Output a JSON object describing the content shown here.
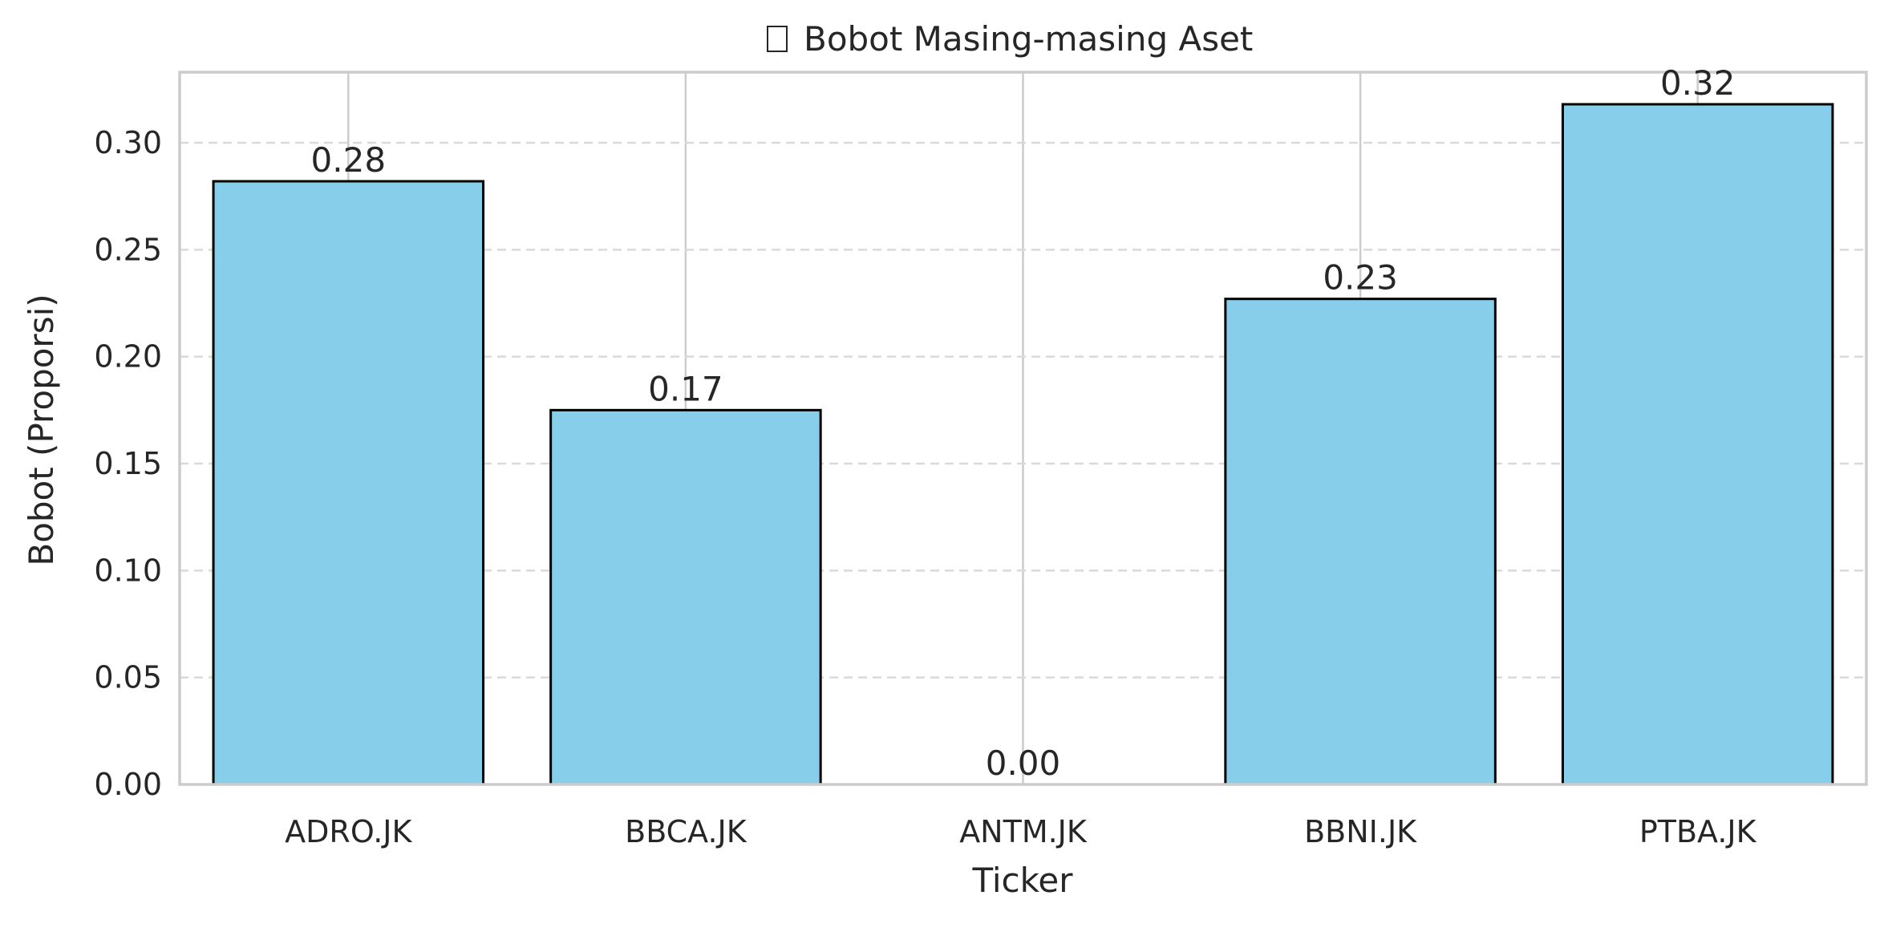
{
  "chart_data": {
    "type": "bar",
    "title": "Bobot Masing-masing Aset",
    "title_icon": "missing-glyph-box",
    "xlabel": "Ticker",
    "ylabel": "Bobot (Proporsi)",
    "categories": [
      "ADRO.JK",
      "BBCA.JK",
      "ANTM.JK",
      "BBNI.JK",
      "PTBA.JK"
    ],
    "values": [
      0.282,
      0.175,
      0.0,
      0.227,
      0.318
    ],
    "data_labels": [
      "0.28",
      "0.17",
      "0.00",
      "0.23",
      "0.32"
    ],
    "ylim": [
      0,
      0.333
    ],
    "yticks": [
      0.0,
      0.05,
      0.1,
      0.15,
      0.2,
      0.25,
      0.3
    ],
    "ytick_labels": [
      "0.00",
      "0.05",
      "0.10",
      "0.15",
      "0.20",
      "0.25",
      "0.30"
    ],
    "grid": true,
    "y_grid_style": "dashed",
    "x_grid_style": "solid",
    "colors": {
      "bar_fill": "#87ceeb",
      "bar_edge": "#000000",
      "grid": "#d9d9d9",
      "spine": "#cccccc",
      "text": "#262626"
    }
  }
}
